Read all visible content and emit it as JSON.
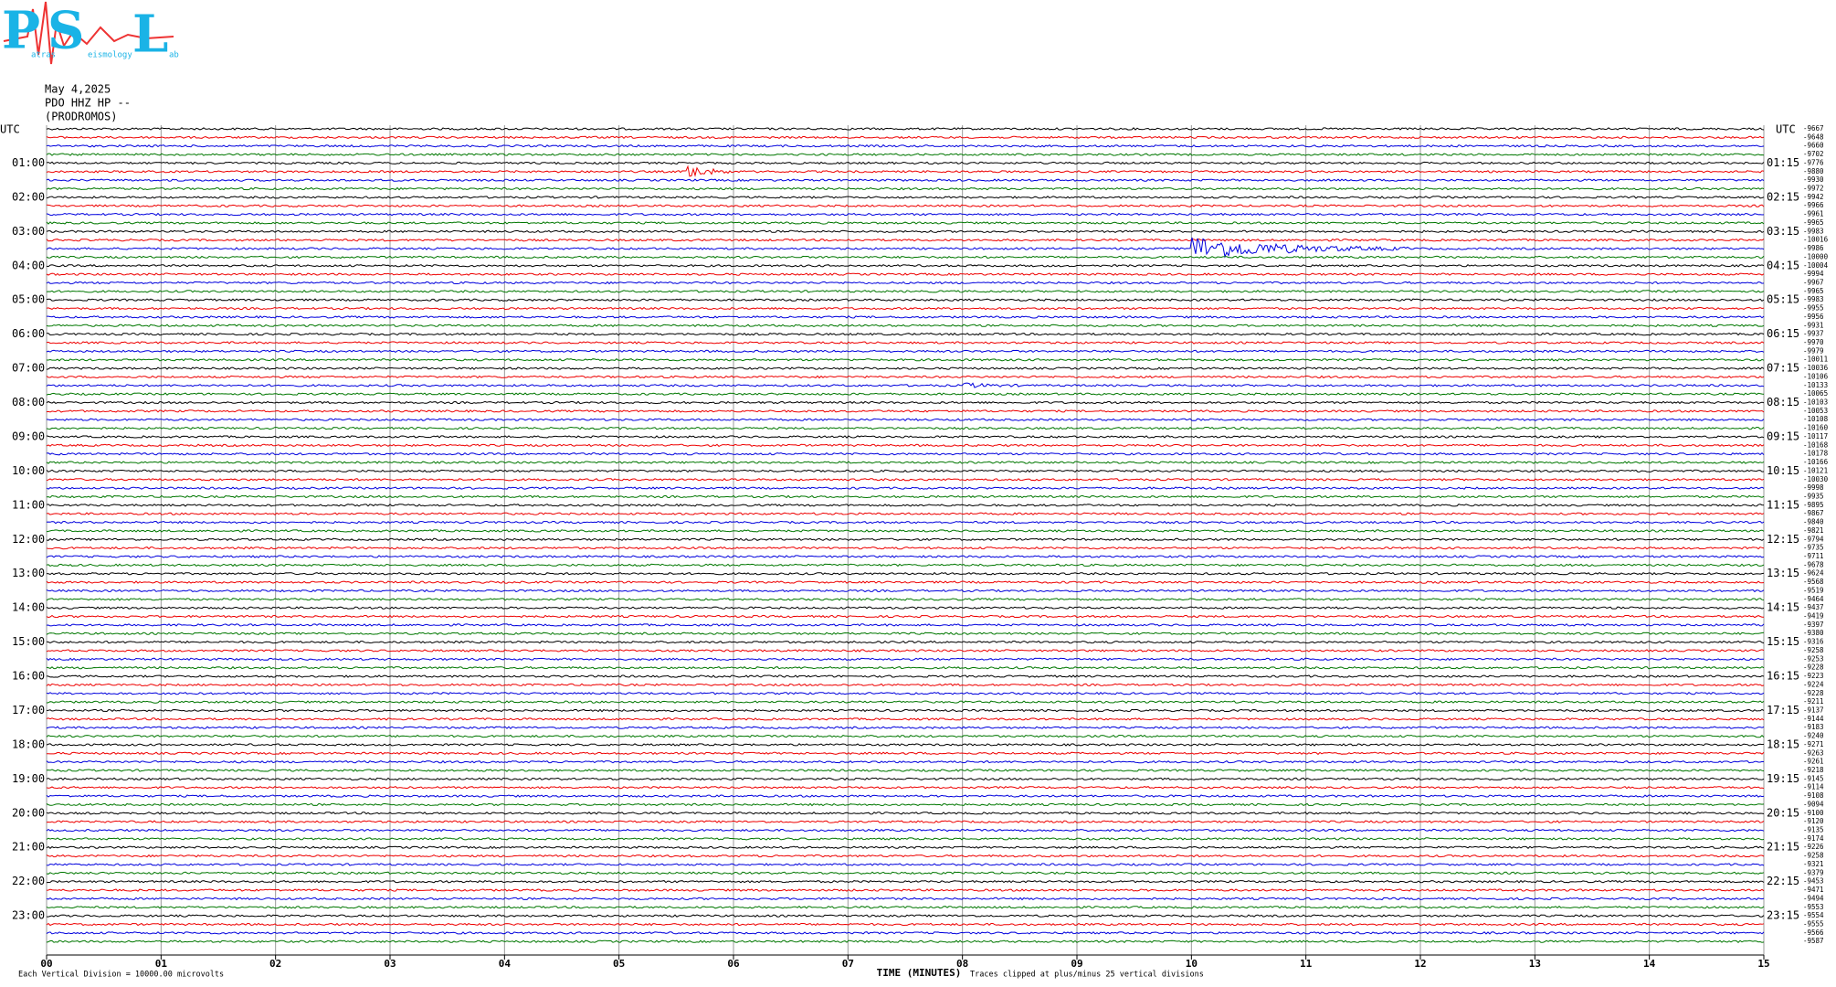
{
  "logo": {
    "letters": [
      "P",
      "S",
      "L"
    ],
    "small": [
      "atras",
      "eismology",
      "ab"
    ]
  },
  "header": {
    "date": "May 4,2025",
    "station": "PDO HHZ HP --",
    "location": "(PRODROMOS)"
  },
  "left_axis": {
    "title": "UTC",
    "labels": [
      "01:00",
      "02:00",
      "03:00",
      "04:00",
      "05:00",
      "06:00",
      "07:00",
      "08:00",
      "09:00",
      "10:00",
      "11:00",
      "12:00",
      "13:00",
      "14:00",
      "15:00",
      "16:00",
      "17:00",
      "18:00",
      "19:00",
      "20:00",
      "21:00",
      "22:00",
      "23:00"
    ]
  },
  "right_axis": {
    "title": "UTC",
    "labels": [
      "01:15",
      "02:15",
      "03:15",
      "04:15",
      "05:15",
      "06:15",
      "07:15",
      "08:15",
      "09:15",
      "10:15",
      "11:15",
      "12:15",
      "13:15",
      "14:15",
      "15:15",
      "16:15",
      "17:15",
      "18:15",
      "19:15",
      "20:15",
      "21:15",
      "22:15",
      "23:15"
    ]
  },
  "offsets": [
    -9667,
    -9648,
    -9660,
    -9702,
    -9776,
    -9880,
    -9930,
    -9972,
    -9942,
    -9966,
    -9961,
    -9965,
    -9983,
    -10016,
    -9986,
    -10000,
    -10004,
    -9994,
    -9967,
    -9965,
    -9983,
    -9955,
    -9956,
    -9931,
    -9937,
    -9970,
    -9979,
    -10011,
    -10036,
    -10106,
    -10133,
    -10065,
    -10103,
    -10053,
    -10108,
    -10160,
    -10117,
    -10168,
    -10178,
    -10166,
    -10121,
    -10030,
    -9998,
    -9935,
    -9895,
    -9867,
    -9840,
    -9821,
    -9794,
    -9735,
    -9711,
    -9678,
    -9624,
    -9568,
    -9519,
    -9464,
    -9437,
    -9419,
    -9397,
    -9380,
    -9316,
    -9258,
    -9253,
    -9228,
    -9223,
    -9224,
    -9228,
    -9211,
    -9137,
    -9144,
    -9183,
    -9240,
    -9271,
    -9263,
    -9261,
    -9218,
    -9145,
    -9114,
    -9108,
    -9094,
    -9100,
    -9120,
    -9135,
    -9174,
    -9226,
    -9258,
    -9321,
    -9379,
    -9453,
    -9471,
    -9494,
    -9553,
    -9554,
    -9555,
    -9566,
    -9587
  ],
  "x_axis": {
    "title": "TIME (MINUTES)",
    "ticks": [
      "00",
      "01",
      "02",
      "03",
      "04",
      "05",
      "06",
      "07",
      "08",
      "09",
      "10",
      "11",
      "12",
      "13",
      "14",
      "15"
    ]
  },
  "footer": {
    "scale": "Each Vertical Division = 10000.00 microvolts",
    "clip": "Traces clipped at plus/minus 25 vertical divisions"
  }
}
